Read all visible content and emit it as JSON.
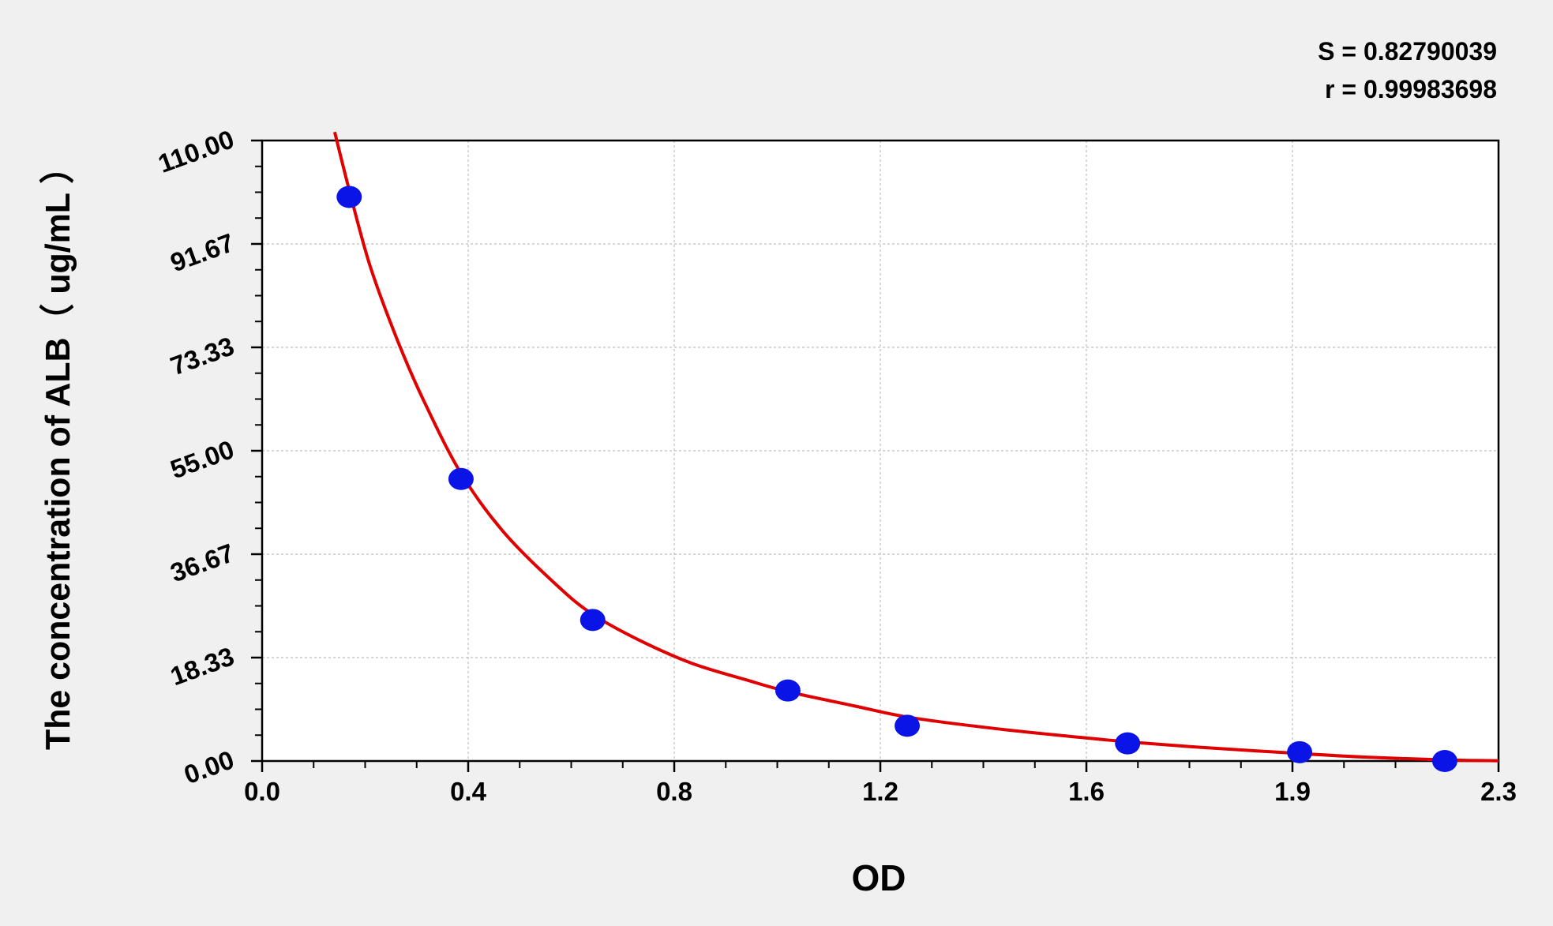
{
  "chart_data": {
    "type": "scatter",
    "xlabel": "OD",
    "ylabel": "The concentration of ALB（ ug/mL ）",
    "xlim": [
      0,
      2.3
    ],
    "ylim": [
      0,
      110
    ],
    "x_ticks": [
      "0.0",
      "0.4",
      "0.8",
      "1.2",
      "1.6",
      "1.9",
      "2.3"
    ],
    "y_ticks": [
      "0.00",
      "18.33",
      "36.67",
      "55.00",
      "73.33",
      "91.67",
      "110.00"
    ],
    "grid": true,
    "stats": {
      "s_text": "S = 0.82790039",
      "r_text": "r = 0.99983698"
    },
    "points": [
      {
        "x": 0.162,
        "y": 100
      },
      {
        "x": 0.37,
        "y": 50
      },
      {
        "x": 0.615,
        "y": 25
      },
      {
        "x": 0.978,
        "y": 12.5
      },
      {
        "x": 1.2,
        "y": 6.25
      },
      {
        "x": 1.61,
        "y": 3.125
      },
      {
        "x": 1.93,
        "y": 1.5625
      },
      {
        "x": 2.2,
        "y": 0
      }
    ],
    "fit_curve": [
      {
        "x": 0.135,
        "y": 111.5
      },
      {
        "x": 0.16,
        "y": 102
      },
      {
        "x": 0.2,
        "y": 88
      },
      {
        "x": 0.25,
        "y": 75
      },
      {
        "x": 0.3,
        "y": 64
      },
      {
        "x": 0.37,
        "y": 51
      },
      {
        "x": 0.45,
        "y": 40.5
      },
      {
        "x": 0.55,
        "y": 31
      },
      {
        "x": 0.615,
        "y": 26
      },
      {
        "x": 0.7,
        "y": 21.5
      },
      {
        "x": 0.8,
        "y": 17.3
      },
      {
        "x": 0.9,
        "y": 14.4
      },
      {
        "x": 0.978,
        "y": 12.3
      },
      {
        "x": 1.1,
        "y": 9.8
      },
      {
        "x": 1.2,
        "y": 7.8
      },
      {
        "x": 1.35,
        "y": 5.9
      },
      {
        "x": 1.5,
        "y": 4.4
      },
      {
        "x": 1.61,
        "y": 3.4
      },
      {
        "x": 1.75,
        "y": 2.4
      },
      {
        "x": 1.9,
        "y": 1.5
      },
      {
        "x": 2.05,
        "y": 0.7
      },
      {
        "x": 2.2,
        "y": 0.2
      },
      {
        "x": 2.3,
        "y": 0.05
      }
    ],
    "colors": {
      "point": "#0a14e6",
      "curve": "#e00000",
      "grid": "#bdbdbd",
      "background": "#f0f0f0",
      "plot_area": "#ffffff"
    }
  }
}
